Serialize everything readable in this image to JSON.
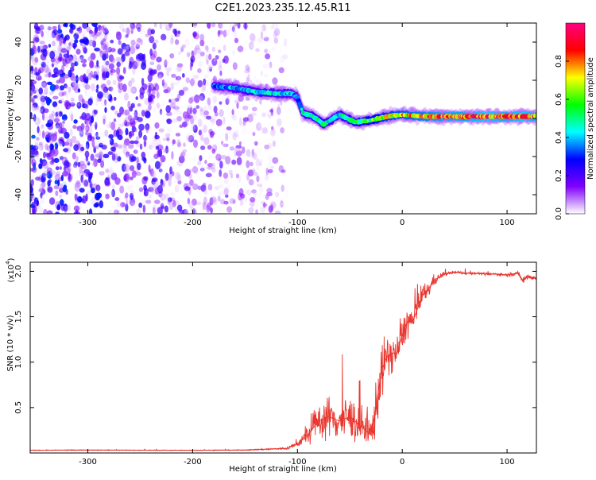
{
  "figure_title": "C2E1.2023.235.12.45.R11",
  "chart_data": [
    {
      "type": "heatmap",
      "title": "",
      "xlabel": "Height of straight line (km)",
      "ylabel": "Frequency (Hz)",
      "xlim": [
        -355,
        128
      ],
      "ylim": [
        -50,
        50
      ],
      "xticks": [
        -300,
        -200,
        -100,
        0,
        100
      ],
      "xtick_labels": [
        "-300",
        "-200",
        "-100",
        "0",
        "100"
      ],
      "yticks": [
        -40,
        -20,
        0,
        20,
        40
      ],
      "ytick_labels": [
        "-40",
        "-20",
        "0",
        "20",
        "40"
      ],
      "colorbar": {
        "label": "Normalized spectral amplitude",
        "range": [
          0,
          1
        ],
        "ticks": [
          0.0,
          0.2,
          0.4,
          0.6,
          0.8
        ],
        "tick_labels": [
          "0.0",
          "0.2",
          "0.4",
          "0.6",
          "0.8"
        ],
        "stops": [
          "#ffffff",
          "#8000ff",
          "#0000ff",
          "#00ffff",
          "#00ff00",
          "#ffff00",
          "#ff0000",
          "#ff0080"
        ]
      },
      "noise_region": {
        "x_range": [
          -355,
          -110
        ],
        "freq_range": [
          -50,
          50
        ],
        "amplitude": [
          0.0,
          0.35
        ]
      },
      "signal_track": [
        {
          "x": -180,
          "freq": 17,
          "amp": 0.35
        },
        {
          "x": -160,
          "freq": 16,
          "amp": 0.4
        },
        {
          "x": -140,
          "freq": 14,
          "amp": 0.45
        },
        {
          "x": -120,
          "freq": 13,
          "amp": 0.45
        },
        {
          "x": -105,
          "freq": 13,
          "amp": 0.4
        },
        {
          "x": -100,
          "freq": 11,
          "amp": 0.35
        },
        {
          "x": -95,
          "freq": 3,
          "amp": 0.45
        },
        {
          "x": -85,
          "freq": 1,
          "amp": 0.5
        },
        {
          "x": -75,
          "freq": -3,
          "amp": 0.5
        },
        {
          "x": -60,
          "freq": 2,
          "amp": 0.45
        },
        {
          "x": -45,
          "freq": -2,
          "amp": 0.55
        },
        {
          "x": -30,
          "freq": -1,
          "amp": 0.6
        },
        {
          "x": -15,
          "freq": 1,
          "amp": 0.7
        },
        {
          "x": 0,
          "freq": 2,
          "amp": 0.75
        },
        {
          "x": 20,
          "freq": 1,
          "amp": 0.8
        },
        {
          "x": 40,
          "freq": 1,
          "amp": 0.85
        },
        {
          "x": 60,
          "freq": 1,
          "amp": 0.85
        },
        {
          "x": 80,
          "freq": 1,
          "amp": 0.9
        },
        {
          "x": 100,
          "freq": 1,
          "amp": 0.85
        },
        {
          "x": 115,
          "freq": 1,
          "amp": 0.9
        },
        {
          "x": 128,
          "freq": 1,
          "amp": 0.85
        }
      ]
    },
    {
      "type": "line",
      "title": "",
      "xlabel": "Height of straight line (km)",
      "ylabel": "SNR (10 * v/v)",
      "multiplier_label": "(x10",
      "multiplier_exp": "4",
      "multiplier_close": ")",
      "xlim": [
        -355,
        128
      ],
      "ylim": [
        0,
        21000
      ],
      "xticks": [
        -300,
        -200,
        -100,
        0,
        100
      ],
      "xtick_labels": [
        "-300",
        "-200",
        "-100",
        "0",
        "100"
      ],
      "yticks": [
        5000,
        10000,
        15000,
        20000
      ],
      "ytick_labels": [
        "0.5",
        "1.0",
        "1.5",
        "2.0"
      ],
      "color": "#e8362e",
      "series": [
        {
          "x": [
            -355,
            -300,
            -250,
            -200,
            -150,
            -110,
            -100,
            -90,
            -80,
            -70,
            -60,
            -50,
            -40,
            -30,
            -25,
            -20,
            -15,
            -10,
            -5,
            0,
            5,
            10,
            15,
            20,
            25,
            30,
            40,
            50,
            60,
            70,
            80,
            90,
            100,
            110,
            115,
            120,
            128
          ],
          "y": [
            300,
            320,
            310,
            300,
            320,
            500,
            1000,
            2000,
            3500,
            4000,
            3500,
            4000,
            3000,
            2000,
            5000,
            9000,
            10500,
            11000,
            11000,
            13000,
            14500,
            14500,
            16000,
            17500,
            18000,
            19000,
            19700,
            19900,
            19800,
            19800,
            19700,
            19700,
            19600,
            19800,
            19000,
            19500,
            19200
          ],
          "noise_amplitude": [
            50,
            50,
            50,
            50,
            60,
            200,
            400,
            1500,
            2500,
            3000,
            3000,
            3000,
            3000,
            2500,
            4000,
            4000,
            3000,
            2500,
            2500,
            2500,
            2500,
            2000,
            2000,
            1500,
            1200,
            800,
            300,
            200,
            200,
            200,
            200,
            200,
            250,
            300,
            600,
            500,
            400
          ]
        }
      ]
    }
  ]
}
